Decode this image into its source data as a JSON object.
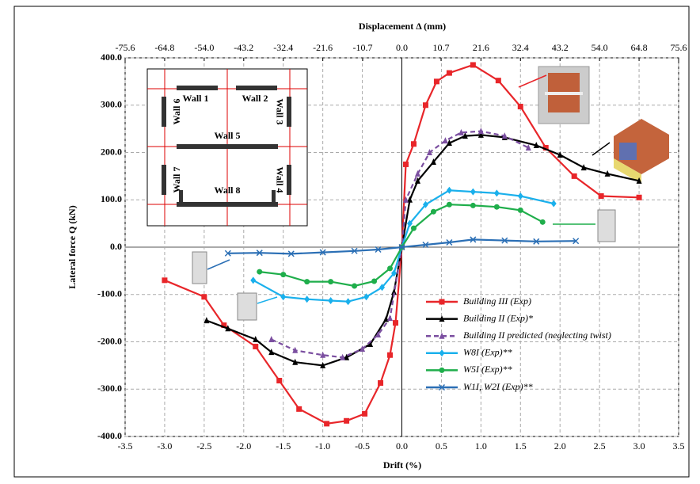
{
  "chart_data": {
    "type": "line",
    "xlabel": "Drift (%)",
    "ylabel": "Lateral force Q (kN)",
    "x2label": "Displacement Δ (mm)",
    "xlim": [
      -3.5,
      3.5
    ],
    "xticks": [
      -3.5,
      {
        "value": -3,
        "label": "-3.0"
      },
      -2.5,
      {
        "value": -2,
        "label": "-2.0"
      },
      -1.5,
      {
        "value": -1,
        "label": "-1.0"
      },
      -0.5,
      {
        "value": 0,
        "label": "0.0"
      },
      0.5,
      {
        "value": 1,
        "label": "1.0"
      },
      1.5,
      {
        "value": 2,
        "label": "2.0"
      },
      2.5,
      {
        "value": 3,
        "label": "3.0"
      },
      3.5
    ],
    "x2lim": [
      -75.6,
      75.6
    ],
    "x2ticks": [
      -75.6,
      -64.8,
      {
        "value": -54,
        "label": "-54.0"
      },
      -43.2,
      -32.4,
      -21.6,
      -10.7,
      {
        "value": 0,
        "label": "0.0"
      },
      10.7,
      21.6,
      32.4,
      43.2,
      {
        "value": 54,
        "label": "54.0"
      },
      64.8,
      75.6
    ],
    "ylim": [
      -400,
      400
    ],
    "yticks": [
      {
        "value": -400,
        "label": "-400.0"
      },
      {
        "value": -300,
        "label": "-300.0"
      },
      {
        "value": -200,
        "label": "-200.0"
      },
      {
        "value": -100,
        "label": "-100.0"
      },
      {
        "value": 0,
        "label": "0.0"
      },
      {
        "value": 100,
        "label": "100.0"
      },
      {
        "value": 200,
        "label": "200.0"
      },
      {
        "value": 300,
        "label": "300.0"
      },
      {
        "value": 400,
        "label": "400.0"
      }
    ],
    "grid": true,
    "series": [
      {
        "name": "Building III (Exp)",
        "color": "#e8262a",
        "marker": "square",
        "dash": false,
        "x": [
          -3.0,
          -2.5,
          -2.25,
          -1.85,
          -1.55,
          -1.3,
          -0.95,
          -0.7,
          -0.47,
          -0.27,
          -0.15,
          -0.08,
          0,
          0.05,
          0.15,
          0.3,
          0.44,
          0.6,
          0.9,
          1.22,
          1.5,
          1.82,
          2.18,
          2.52,
          3.0
        ],
        "values": [
          -70,
          -105,
          -165,
          -210,
          -282,
          -342,
          -373,
          -367,
          -352,
          -287,
          -228,
          -160,
          0,
          175,
          218,
          300,
          350,
          368,
          385,
          352,
          297,
          210,
          150,
          108,
          105
        ]
      },
      {
        "name": "Building II (Exp)*",
        "color": "#000000",
        "marker": "triangle",
        "dash": false,
        "x": [
          -2.47,
          -2.2,
          -1.85,
          -1.65,
          -1.35,
          -1.0,
          -0.7,
          -0.4,
          -0.2,
          -0.1,
          0,
          0.1,
          0.2,
          0.4,
          0.6,
          0.8,
          1.0,
          1.3,
          1.7,
          2.0,
          2.3,
          2.6,
          3.0
        ],
        "values": [
          -155,
          -172,
          -195,
          -222,
          -243,
          -250,
          -233,
          -205,
          -152,
          -95,
          0,
          100,
          140,
          180,
          220,
          235,
          237,
          232,
          215,
          195,
          168,
          155,
          140
        ]
      },
      {
        "name": "Building II predicted (neglecting twist)",
        "color": "#7b4fa0",
        "marker": "triangle",
        "dash": true,
        "x": [
          -1.65,
          -1.35,
          -1.0,
          -0.75,
          -0.5,
          -0.3,
          -0.15,
          0,
          0.05,
          0.2,
          0.35,
          0.55,
          0.75,
          1.0,
          1.3,
          1.6
        ],
        "values": [
          -195,
          -218,
          -228,
          -233,
          -215,
          -185,
          -150,
          0,
          100,
          155,
          200,
          225,
          242,
          245,
          235,
          210
        ]
      },
      {
        "name": "W8I (Exp)**",
        "color": "#1ab0ec",
        "marker": "diamond",
        "dash": false,
        "x": [
          -1.88,
          -1.5,
          -1.2,
          -0.9,
          -0.68,
          -0.45,
          -0.25,
          -0.1,
          0,
          0.1,
          0.3,
          0.6,
          0.9,
          1.2,
          1.5,
          1.92
        ],
        "values": [
          -70,
          -105,
          -110,
          -113,
          -115,
          -105,
          -85,
          -55,
          0,
          50,
          90,
          120,
          117,
          114,
          108,
          92
        ]
      },
      {
        "name": "W5I (Exp)**",
        "color": "#1fae4b",
        "marker": "circle",
        "dash": false,
        "x": [
          -1.8,
          -1.5,
          -1.2,
          -0.9,
          -0.6,
          -0.35,
          -0.15,
          0,
          0.15,
          0.4,
          0.6,
          0.9,
          1.2,
          1.5,
          1.78
        ],
        "values": [
          -52,
          -58,
          -73,
          -73,
          -82,
          -72,
          -45,
          0,
          40,
          75,
          90,
          88,
          85,
          78,
          53
        ]
      },
      {
        "name": "W1I, W2I (Exp)**",
        "color": "#2b6fb5",
        "marker": "x",
        "dash": false,
        "x": [
          -2.2,
          -1.8,
          -1.4,
          -1.0,
          -0.6,
          -0.3,
          0,
          0.3,
          0.6,
          0.9,
          1.3,
          1.7,
          2.2
        ],
        "values": [
          -13,
          -12,
          -14,
          -11,
          -8,
          -5,
          0,
          5,
          10,
          16,
          14,
          12,
          13
        ]
      }
    ],
    "inset_labels": [
      "Wall 1",
      "Wall 2",
      "Wall 3",
      "Wall 4",
      "Wall 5",
      "Wall 6",
      "Wall 7",
      "Wall 8"
    ]
  }
}
